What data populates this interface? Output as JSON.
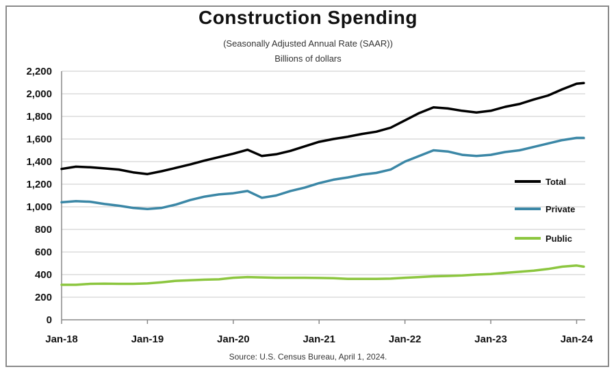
{
  "chart_data": {
    "type": "line",
    "title": "Construction Spending",
    "subtitle": "(Seasonally Adjusted Annual Rate (SAAR))",
    "units_label": "Billions of dollars",
    "source": "Source: U.S. Census Bureau, April 1, 2024.",
    "xlabel": "",
    "ylabel": "",
    "ylim": [
      0,
      2200
    ],
    "yticks": [
      0,
      200,
      400,
      600,
      800,
      1000,
      1200,
      1400,
      1600,
      1800,
      2000,
      2200
    ],
    "ytick_labels": [
      "0",
      "200",
      "400",
      "600",
      "800",
      "1,000",
      "1,200",
      "1,400",
      "1,600",
      "1,800",
      "2,000",
      "2,200"
    ],
    "xtick_labels": [
      "Jan-18",
      "Jan-19",
      "Jan-20",
      "Jan-21",
      "Jan-22",
      "Jan-23",
      "Jan-24"
    ],
    "xtick_positions": [
      "2018-01",
      "2019-01",
      "2020-01",
      "2021-01",
      "2022-01",
      "2023-01",
      "2024-01"
    ],
    "x": [
      "2018-01",
      "2018-03",
      "2018-05",
      "2018-07",
      "2018-09",
      "2018-11",
      "2019-01",
      "2019-03",
      "2019-05",
      "2019-07",
      "2019-09",
      "2019-11",
      "2020-01",
      "2020-03",
      "2020-05",
      "2020-07",
      "2020-09",
      "2020-11",
      "2021-01",
      "2021-03",
      "2021-05",
      "2021-07",
      "2021-09",
      "2021-11",
      "2022-01",
      "2022-03",
      "2022-05",
      "2022-07",
      "2022-09",
      "2022-11",
      "2023-01",
      "2023-03",
      "2023-05",
      "2023-07",
      "2023-09",
      "2023-11",
      "2024-01",
      "2024-02"
    ],
    "grid": true,
    "legend_position": "right",
    "series": [
      {
        "name": "Total",
        "color": "#000000",
        "values": [
          1335,
          1355,
          1350,
          1340,
          1330,
          1305,
          1290,
          1315,
          1345,
          1375,
          1410,
          1440,
          1470,
          1505,
          1450,
          1465,
          1495,
          1535,
          1575,
          1600,
          1620,
          1645,
          1665,
          1700,
          1765,
          1830,
          1880,
          1870,
          1850,
          1835,
          1850,
          1885,
          1910,
          1950,
          1985,
          2040,
          2090,
          2095
        ]
      },
      {
        "name": "Private",
        "color": "#3b87a6",
        "values": [
          1040,
          1050,
          1045,
          1025,
          1010,
          990,
          980,
          990,
          1020,
          1060,
          1090,
          1110,
          1120,
          1140,
          1080,
          1100,
          1140,
          1170,
          1210,
          1240,
          1260,
          1285,
          1300,
          1330,
          1400,
          1450,
          1500,
          1490,
          1460,
          1450,
          1460,
          1485,
          1500,
          1530,
          1560,
          1590,
          1610,
          1610
        ]
      },
      {
        "name": "Public",
        "color": "#8cc63f",
        "values": [
          310,
          310,
          318,
          320,
          318,
          318,
          322,
          332,
          345,
          350,
          355,
          358,
          372,
          378,
          375,
          372,
          372,
          372,
          370,
          368,
          362,
          362,
          362,
          364,
          372,
          378,
          385,
          388,
          392,
          400,
          405,
          415,
          425,
          435,
          450,
          470,
          480,
          470
        ]
      }
    ]
  }
}
